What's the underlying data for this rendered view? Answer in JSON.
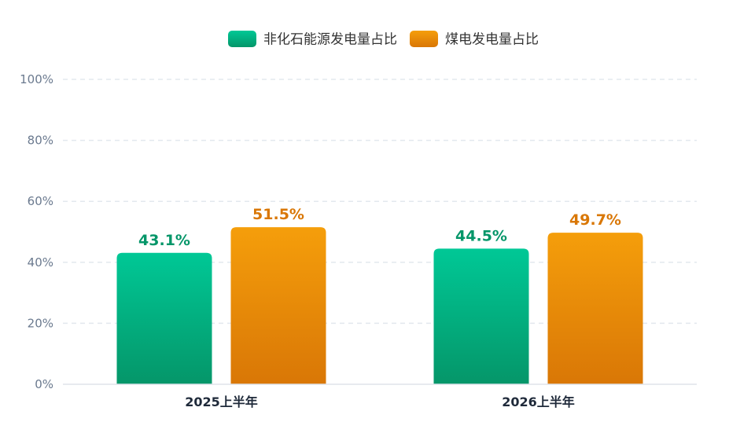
{
  "chart_data": {
    "type": "bar",
    "title": "",
    "xlabel": "",
    "ylabel": "",
    "categories": [
      "2025上半年",
      "2026上半年"
    ],
    "series": [
      {
        "name": "非化石能源发电量占比",
        "values": [
          43.1,
          44.5
        ],
        "value_labels": [
          "43.1%",
          "44.5%"
        ],
        "color_top": "#00c896",
        "color_bottom": "#059669",
        "label_color": "#059669"
      },
      {
        "name": "煤电发电量占比",
        "values": [
          51.5,
          49.7
        ],
        "value_labels": [
          "51.5%",
          "49.7%"
        ],
        "color_top": "#f59e0b",
        "color_bottom": "#d97706",
        "label_color": "#d97706"
      }
    ],
    "ylim": [
      0,
      100
    ],
    "yticks": [
      0,
      20,
      40,
      60,
      80,
      100
    ],
    "ytick_labels": [
      "0%",
      "20%",
      "40%",
      "60%",
      "80%",
      "100%"
    ],
    "grid": true,
    "grid_style": "dashed",
    "legend_position": "top-center"
  }
}
